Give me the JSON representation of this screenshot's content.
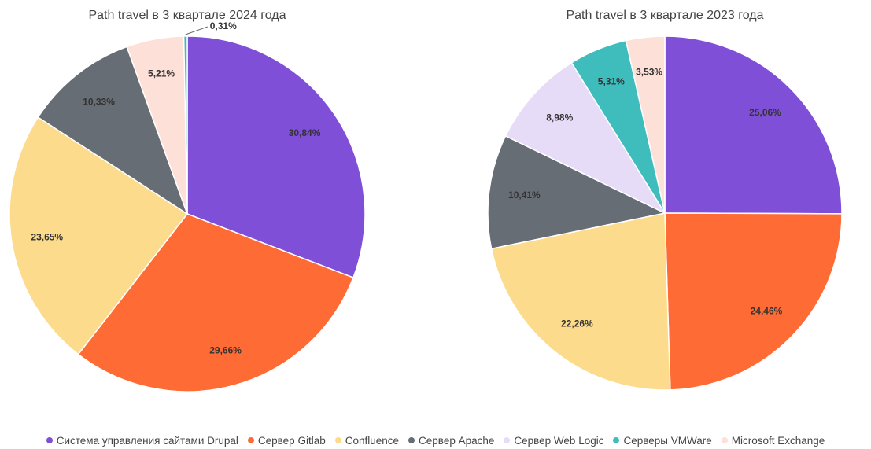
{
  "legend": {
    "items": [
      {
        "name": "Система управления сайтами Drupal",
        "color": "#7f4fd8"
      },
      {
        "name": "Сервер Gitlab",
        "color": "#ff6b35"
      },
      {
        "name": "Confluence",
        "color": "#fcdc8c"
      },
      {
        "name": "Сервер Apache",
        "color": "#676d74"
      },
      {
        "name": "Сервер Web Logic",
        "color": "#e6dcf7"
      },
      {
        "name": "Серверы VMWare",
        "color": "#3fbcbc"
      },
      {
        "name": "Microsoft Exchange",
        "color": "#fde0d8"
      }
    ]
  },
  "chart_data": [
    {
      "type": "pie",
      "title": "Path travel в 3 квартале 2024 года",
      "categories": [
        "Система управления сайтами Drupal",
        "Сервер Gitlab",
        "Confluence",
        "Сервер Apache",
        "Microsoft Exchange",
        "Серверы VMWare"
      ],
      "values": [
        30.84,
        29.66,
        23.65,
        10.33,
        5.21,
        0.31
      ],
      "value_labels": [
        "30,84%",
        "29,66%",
        "23,65%",
        "10,33%",
        "5,21%",
        "0,31%"
      ]
    },
    {
      "type": "pie",
      "title": "Path travel в 3 квартале 2023 года",
      "categories": [
        "Система управления сайтами Drupal",
        "Сервер Gitlab",
        "Confluence",
        "Сервер Apache",
        "Сервер Web Logic",
        "Серверы VMWare",
        "Microsoft Exchange"
      ],
      "values": [
        25.06,
        24.46,
        22.26,
        10.41,
        8.98,
        5.31,
        3.53
      ],
      "value_labels": [
        "25,06%",
        "24,46%",
        "22,26%",
        "10,41%",
        "8,98%",
        "5,31%",
        "3,53%"
      ]
    }
  ]
}
